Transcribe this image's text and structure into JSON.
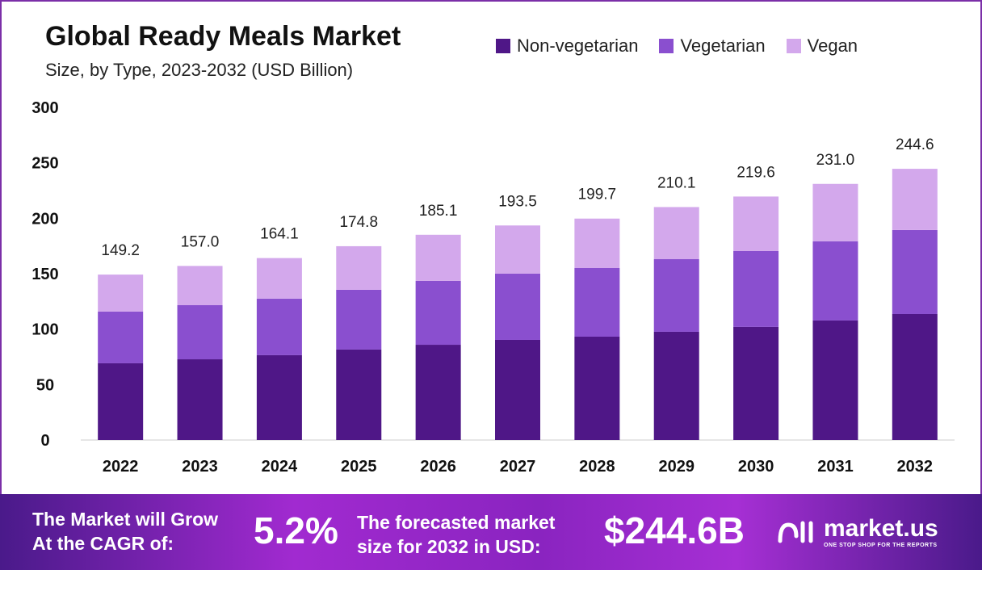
{
  "chart_data": {
    "type": "bar",
    "stacked": true,
    "title": "Global Ready Meals Market",
    "subtitle": "Size, by Type, 2023-2032 (USD Billion)",
    "xlabel": "",
    "ylabel": "",
    "ylim": [
      0,
      300
    ],
    "yticks": [
      0,
      50,
      100,
      150,
      200,
      250,
      300
    ],
    "legend_position": "top-right",
    "categories": [
      "2022",
      "2023",
      "2024",
      "2025",
      "2026",
      "2027",
      "2028",
      "2029",
      "2030",
      "2031",
      "2032"
    ],
    "series": [
      {
        "name": "Non-vegetarian",
        "color": "#4f1787",
        "values": [
          69.2,
          72.8,
          76.5,
          81.6,
          85.9,
          90.3,
          93.2,
          97.6,
          102.0,
          107.8,
          113.6
        ]
      },
      {
        "name": "Vegetarian",
        "color": "#8a4fcf",
        "values": [
          46.6,
          48.8,
          51.0,
          53.9,
          57.6,
          59.7,
          61.9,
          65.5,
          68.4,
          71.4,
          75.8
        ]
      },
      {
        "name": "Vegan",
        "color": "#d3a8ec",
        "values": [
          33.4,
          35.4,
          36.6,
          39.3,
          41.6,
          43.5,
          44.6,
          47.0,
          49.2,
          51.8,
          55.2
        ]
      }
    ],
    "totals": [
      "149.2",
      "157.0",
      "164.1",
      "174.8",
      "185.1",
      "193.5",
      "199.7",
      "210.1",
      "219.6",
      "231.0",
      "244.6"
    ]
  },
  "footer": {
    "cagr_label_1": "The Market will Grow",
    "cagr_label_2": "At the CAGR of:",
    "cagr_value": "5.2%",
    "size_label_1": "The forecasted market",
    "size_label_2": "size for 2032 in USD:",
    "size_value": "$244.6B",
    "logo_name": "market.us",
    "logo_tagline": "ONE STOP SHOP FOR THE REPORTS"
  }
}
